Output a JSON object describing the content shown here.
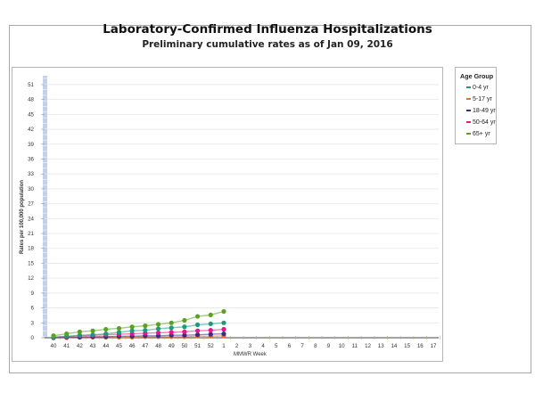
{
  "chart_data": {
    "type": "line",
    "title": "Laboratory-Confirmed Influenza Hospitalizations",
    "subtitle": "Preliminary cumulative rates as of Jan 09, 2016",
    "xlabel": "MMWR Week",
    "ylabel": "Rates per 100,000 population",
    "ylim": [
      0,
      52
    ],
    "yticks": [
      0,
      3,
      6,
      9,
      12,
      15,
      18,
      21,
      24,
      27,
      30,
      33,
      36,
      39,
      42,
      45,
      48,
      51
    ],
    "categories": [
      "40",
      "41",
      "42",
      "43",
      "44",
      "45",
      "46",
      "47",
      "48",
      "49",
      "50",
      "51",
      "52",
      "1",
      "2",
      "3",
      "4",
      "5",
      "6",
      "7",
      "8",
      "9",
      "10",
      "11",
      "12",
      "13",
      "14",
      "15",
      "16",
      "17"
    ],
    "grid": true,
    "legend_title": "Age Group",
    "legend_position": "right",
    "series": [
      {
        "name": "0-4 yr",
        "color": "#1a9b7b",
        "values": [
          0.1,
          0.3,
          0.5,
          0.6,
          0.8,
          1.1,
          1.4,
          1.5,
          1.8,
          2.0,
          2.2,
          2.6,
          2.8,
          3.0
        ]
      },
      {
        "name": "5-17 yr",
        "color": "#e8731a",
        "values": [
          0.0,
          0.0,
          0.1,
          0.1,
          0.1,
          0.1,
          0.1,
          0.2,
          0.2,
          0.2,
          0.2,
          0.3,
          0.3,
          0.4
        ]
      },
      {
        "name": "18-49 yr",
        "color": "#3b2a8c",
        "values": [
          0.0,
          0.1,
          0.1,
          0.2,
          0.2,
          0.3,
          0.3,
          0.4,
          0.4,
          0.5,
          0.5,
          0.6,
          0.7,
          0.8
        ]
      },
      {
        "name": "50-64 yr",
        "color": "#e8168a",
        "values": [
          0.1,
          0.2,
          0.4,
          0.5,
          0.6,
          0.7,
          0.8,
          0.9,
          1.0,
          1.1,
          1.2,
          1.4,
          1.5,
          1.7
        ]
      },
      {
        "name": "65+ yr",
        "color": "#5aa21e",
        "values": [
          0.4,
          0.8,
          1.2,
          1.4,
          1.7,
          1.9,
          2.2,
          2.4,
          2.7,
          3.0,
          3.5,
          4.3,
          4.6,
          5.3
        ]
      }
    ]
  }
}
